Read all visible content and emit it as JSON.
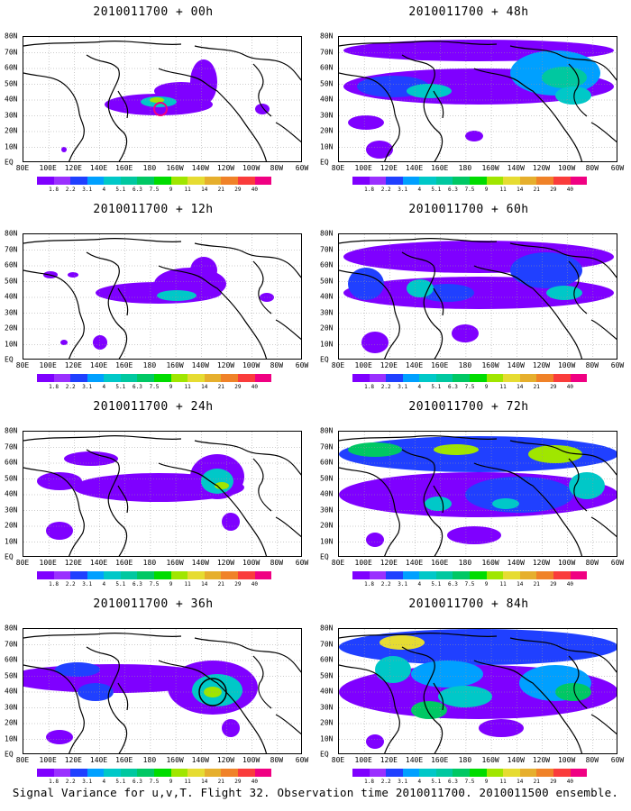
{
  "footer": "Signal Variance for u,v,T. Flight 32. Observation time 2010011700. 2010011500 ensemble.",
  "lat_labels": [
    "EQ",
    "10N",
    "20N",
    "30N",
    "40N",
    "50N",
    "60N",
    "70N",
    "80N"
  ],
  "lon_labels": [
    "80E",
    "100E",
    "120E",
    "140E",
    "160E",
    "180",
    "160W",
    "140W",
    "120W",
    "100W",
    "80W",
    "60W"
  ],
  "colorbar": {
    "labels": [
      "1.8",
      "2.2",
      "3.1",
      "4",
      "5.1",
      "6.3",
      "7.5",
      "9",
      "11",
      "14",
      "21",
      "29",
      "40"
    ],
    "colors": [
      "#7f00ff",
      "#9a30ff",
      "#2040ff",
      "#00a0ff",
      "#00c8c8",
      "#00c8a0",
      "#00c864",
      "#00dc00",
      "#a0e600",
      "#e6dc32",
      "#e6af2d",
      "#f08228",
      "#fa3c3c",
      "#f00082"
    ]
  },
  "panels": [
    {
      "title": "2010011700 + 00h"
    },
    {
      "title": "2010011700 + 48h"
    },
    {
      "title": "2010011700 + 12h"
    },
    {
      "title": "2010011700 + 60h"
    },
    {
      "title": "2010011700 + 24h"
    },
    {
      "title": "2010011700 + 72h"
    },
    {
      "title": "2010011700 + 36h"
    },
    {
      "title": "2010011700 + 84h"
    }
  ]
}
